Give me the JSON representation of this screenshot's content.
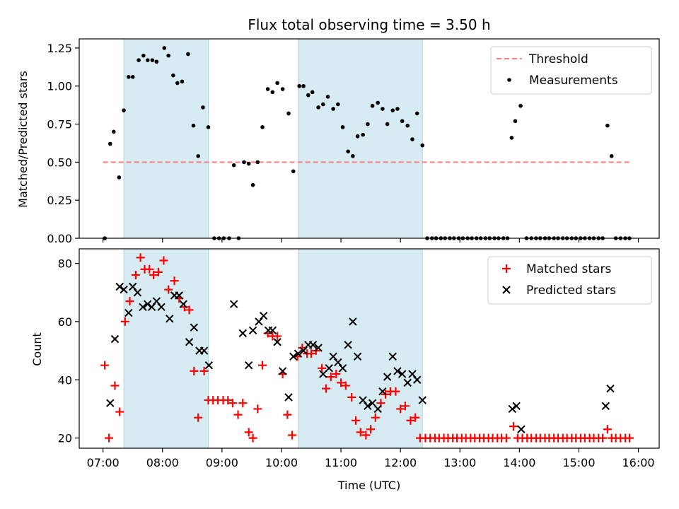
{
  "chart_data": [
    {
      "type": "scatter",
      "title": "Flux total observing time = 3.50 h",
      "xlabel": "",
      "ylabel": "Matched/Predicted stars",
      "xlim": [
        6.6,
        16.35
      ],
      "ylim": [
        0,
        1.31
      ],
      "yticks": [
        0,
        0.25,
        0.5,
        0.75,
        1.0,
        1.25
      ],
      "ytick_labels": [
        "0.00",
        "0.25",
        "0.50",
        "0.75",
        "1.00",
        "1.25"
      ],
      "shaded_intervals": [
        [
          7.35,
          8.77
        ],
        [
          10.28,
          12.37
        ]
      ],
      "legend_position": "top-right",
      "series": [
        {
          "name": "Threshold",
          "style": "dashed-line",
          "color": "#ff7f7f",
          "x": [
            7.0,
            15.85
          ],
          "y": [
            0.5,
            0.5
          ]
        },
        {
          "name": "Measurements",
          "style": "dot",
          "color": "#000000",
          "x": [
            7.03,
            7.12,
            7.18,
            7.27,
            7.35,
            7.43,
            7.5,
            7.6,
            7.68,
            7.75,
            7.83,
            7.9,
            8.03,
            8.1,
            8.18,
            8.25,
            8.33,
            8.43,
            8.52,
            8.6,
            8.68,
            8.77,
            8.87,
            8.95,
            9.03,
            9.12,
            9.2,
            9.28,
            9.37,
            9.45,
            9.52,
            9.6,
            9.68,
            9.77,
            9.85,
            9.93,
            10.02,
            10.12,
            10.2,
            10.3,
            10.37,
            10.45,
            10.52,
            10.62,
            10.7,
            10.78,
            10.87,
            10.95,
            11.03,
            11.12,
            11.2,
            11.28,
            11.37,
            11.45,
            11.53,
            11.62,
            11.7,
            11.78,
            11.87,
            11.95,
            12.03,
            12.12,
            12.2,
            12.28,
            12.37,
            12.45,
            12.53,
            12.6,
            12.68,
            12.75,
            12.83,
            12.9,
            12.98,
            13.05,
            13.13,
            13.2,
            13.28,
            13.35,
            13.43,
            13.5,
            13.58,
            13.65,
            13.73,
            13.8,
            13.87,
            13.93,
            14.02,
            14.12,
            14.2,
            14.28,
            14.35,
            14.43,
            14.5,
            14.58,
            14.65,
            14.73,
            14.8,
            14.88,
            14.95,
            15.03,
            15.1,
            15.18,
            15.25,
            15.33,
            15.4,
            15.48,
            15.55,
            15.62,
            15.7,
            15.78,
            15.85
          ],
          "y": [
            0.0,
            0.62,
            0.7,
            0.4,
            0.84,
            1.06,
            1.06,
            1.17,
            1.2,
            1.17,
            1.17,
            1.16,
            1.25,
            1.2,
            1.07,
            1.02,
            1.03,
            1.21,
            0.74,
            0.54,
            0.86,
            0.73,
            0.0,
            0.0,
            0.0,
            0.0,
            0.48,
            0.0,
            0.5,
            0.49,
            0.35,
            0.5,
            0.73,
            0.98,
            0.96,
            1.02,
            0.98,
            0.82,
            0.44,
            1.0,
            1.0,
            0.94,
            0.96,
            0.86,
            0.88,
            0.93,
            0.85,
            0.88,
            0.73,
            0.57,
            0.54,
            0.67,
            0.68,
            0.75,
            0.87,
            0.89,
            0.85,
            0.75,
            0.84,
            0.85,
            0.77,
            0.74,
            0.65,
            0.82,
            0.61,
            0.0,
            0.0,
            0.0,
            0.0,
            0.0,
            0.0,
            0.0,
            0.0,
            0.0,
            0.0,
            0.0,
            0.0,
            0.0,
            0.0,
            0.0,
            0.0,
            0.0,
            0.0,
            0.0,
            0.66,
            0.77,
            0.87,
            0.0,
            0.0,
            0.0,
            0.0,
            0.0,
            0.0,
            0.0,
            0.0,
            0.0,
            0.0,
            0.0,
            0.0,
            0.0,
            0.0,
            0.0,
            0.0,
            0.0,
            0.0,
            0.74,
            0.54,
            0.0,
            0.0,
            0.0,
            0.0
          ]
        }
      ]
    },
    {
      "type": "scatter",
      "title": "",
      "xlabel": "Time (UTC)",
      "ylabel": "Count",
      "xlim": [
        6.6,
        16.35
      ],
      "ylim": [
        16.5,
        85
      ],
      "xticks": [
        7,
        8,
        9,
        10,
        11,
        12,
        13,
        14,
        15,
        16
      ],
      "xtick_labels": [
        "07:00",
        "08:00",
        "09:00",
        "10:00",
        "11:00",
        "12:00",
        "13:00",
        "14:00",
        "15:00",
        "16:00"
      ],
      "yticks": [
        20,
        40,
        60,
        80
      ],
      "ytick_labels": [
        "20",
        "40",
        "60",
        "80"
      ],
      "shaded_intervals": [
        [
          7.35,
          8.77
        ],
        [
          10.28,
          12.37
        ]
      ],
      "legend_position": "top-right",
      "series": [
        {
          "name": "Matched stars",
          "style": "plus",
          "color": "#ff0000",
          "x": [
            7.03,
            7.1,
            7.2,
            7.28,
            7.37,
            7.45,
            7.55,
            7.63,
            7.7,
            7.78,
            7.85,
            7.93,
            8.02,
            8.1,
            8.2,
            8.28,
            8.37,
            8.45,
            8.53,
            8.6,
            8.7,
            8.77,
            8.85,
            8.93,
            9.02,
            9.1,
            9.18,
            9.27,
            9.35,
            9.45,
            9.52,
            9.6,
            9.68,
            9.77,
            9.85,
            9.93,
            10.02,
            10.1,
            10.18,
            10.27,
            10.35,
            10.43,
            10.5,
            10.58,
            10.68,
            10.75,
            10.83,
            10.92,
            11.0,
            11.08,
            11.18,
            11.25,
            11.33,
            11.42,
            11.5,
            11.58,
            11.67,
            11.75,
            11.83,
            11.92,
            12.0,
            12.08,
            12.17,
            12.25,
            12.33,
            12.42,
            12.5,
            12.58,
            12.65,
            12.73,
            12.8,
            12.88,
            12.95,
            13.03,
            13.1,
            13.18,
            13.25,
            13.33,
            13.4,
            13.48,
            13.55,
            13.63,
            13.7,
            13.78,
            13.9,
            13.97,
            14.05,
            14.13,
            14.2,
            14.28,
            14.35,
            14.43,
            14.5,
            14.58,
            14.65,
            14.73,
            14.8,
            14.88,
            14.95,
            15.03,
            15.1,
            15.18,
            15.25,
            15.33,
            15.4,
            15.48,
            15.55,
            15.62,
            15.7,
            15.78,
            15.85
          ],
          "y": [
            45,
            20,
            38,
            29,
            60,
            67,
            76,
            82,
            78,
            78,
            76,
            77,
            81,
            71,
            74,
            68,
            65,
            64,
            43,
            27,
            43,
            33,
            33,
            33,
            33,
            33,
            32,
            28,
            32,
            22,
            20,
            30,
            45,
            56,
            55,
            55,
            42,
            28,
            21,
            48,
            51,
            49,
            49,
            50,
            44,
            37,
            41,
            42,
            39,
            38,
            34,
            26,
            22,
            21,
            23,
            27,
            32,
            35,
            36,
            36,
            30,
            31,
            26,
            27,
            20,
            20,
            20,
            20,
            20,
            20,
            20,
            20,
            20,
            20,
            20,
            20,
            20,
            20,
            20,
            20,
            20,
            20,
            20,
            20,
            24,
            20,
            20,
            20,
            20,
            20,
            20,
            20,
            20,
            20,
            20,
            20,
            20,
            20,
            20,
            20,
            20,
            20,
            20,
            20,
            20,
            23,
            20,
            20,
            20,
            20,
            20
          ]
        },
        {
          "name": "Predicted stars",
          "style": "x",
          "color": "#000000",
          "x": [
            7.12,
            7.2,
            7.28,
            7.35,
            7.43,
            7.5,
            7.58,
            7.67,
            7.75,
            7.82,
            7.9,
            7.98,
            8.12,
            8.2,
            8.28,
            8.35,
            8.45,
            8.53,
            8.62,
            8.7,
            8.78,
            9.2,
            9.35,
            9.45,
            9.52,
            9.62,
            9.7,
            9.78,
            9.85,
            9.93,
            10.02,
            10.12,
            10.2,
            10.28,
            10.37,
            10.45,
            10.53,
            10.62,
            10.7,
            10.8,
            10.87,
            10.95,
            11.03,
            11.12,
            11.2,
            11.28,
            11.37,
            11.45,
            11.53,
            11.62,
            11.7,
            11.78,
            11.87,
            11.95,
            12.03,
            12.12,
            12.2,
            12.28,
            12.37,
            13.88,
            13.95,
            14.03,
            15.45,
            15.53
          ],
          "y": [
            32,
            54,
            72,
            71,
            63,
            72,
            70,
            65,
            66,
            65,
            67,
            65,
            61,
            69,
            69,
            66,
            53,
            58,
            50,
            50,
            45,
            66,
            56,
            45,
            57,
            60,
            62,
            57,
            57,
            53,
            43,
            34,
            48,
            49,
            50,
            52,
            52,
            51,
            42,
            44,
            48,
            46,
            44,
            52,
            60,
            48,
            33,
            31,
            32,
            30,
            36,
            41,
            48,
            43,
            42,
            39,
            42,
            40,
            33,
            30,
            31,
            23,
            31,
            37
          ]
        }
      ]
    }
  ]
}
